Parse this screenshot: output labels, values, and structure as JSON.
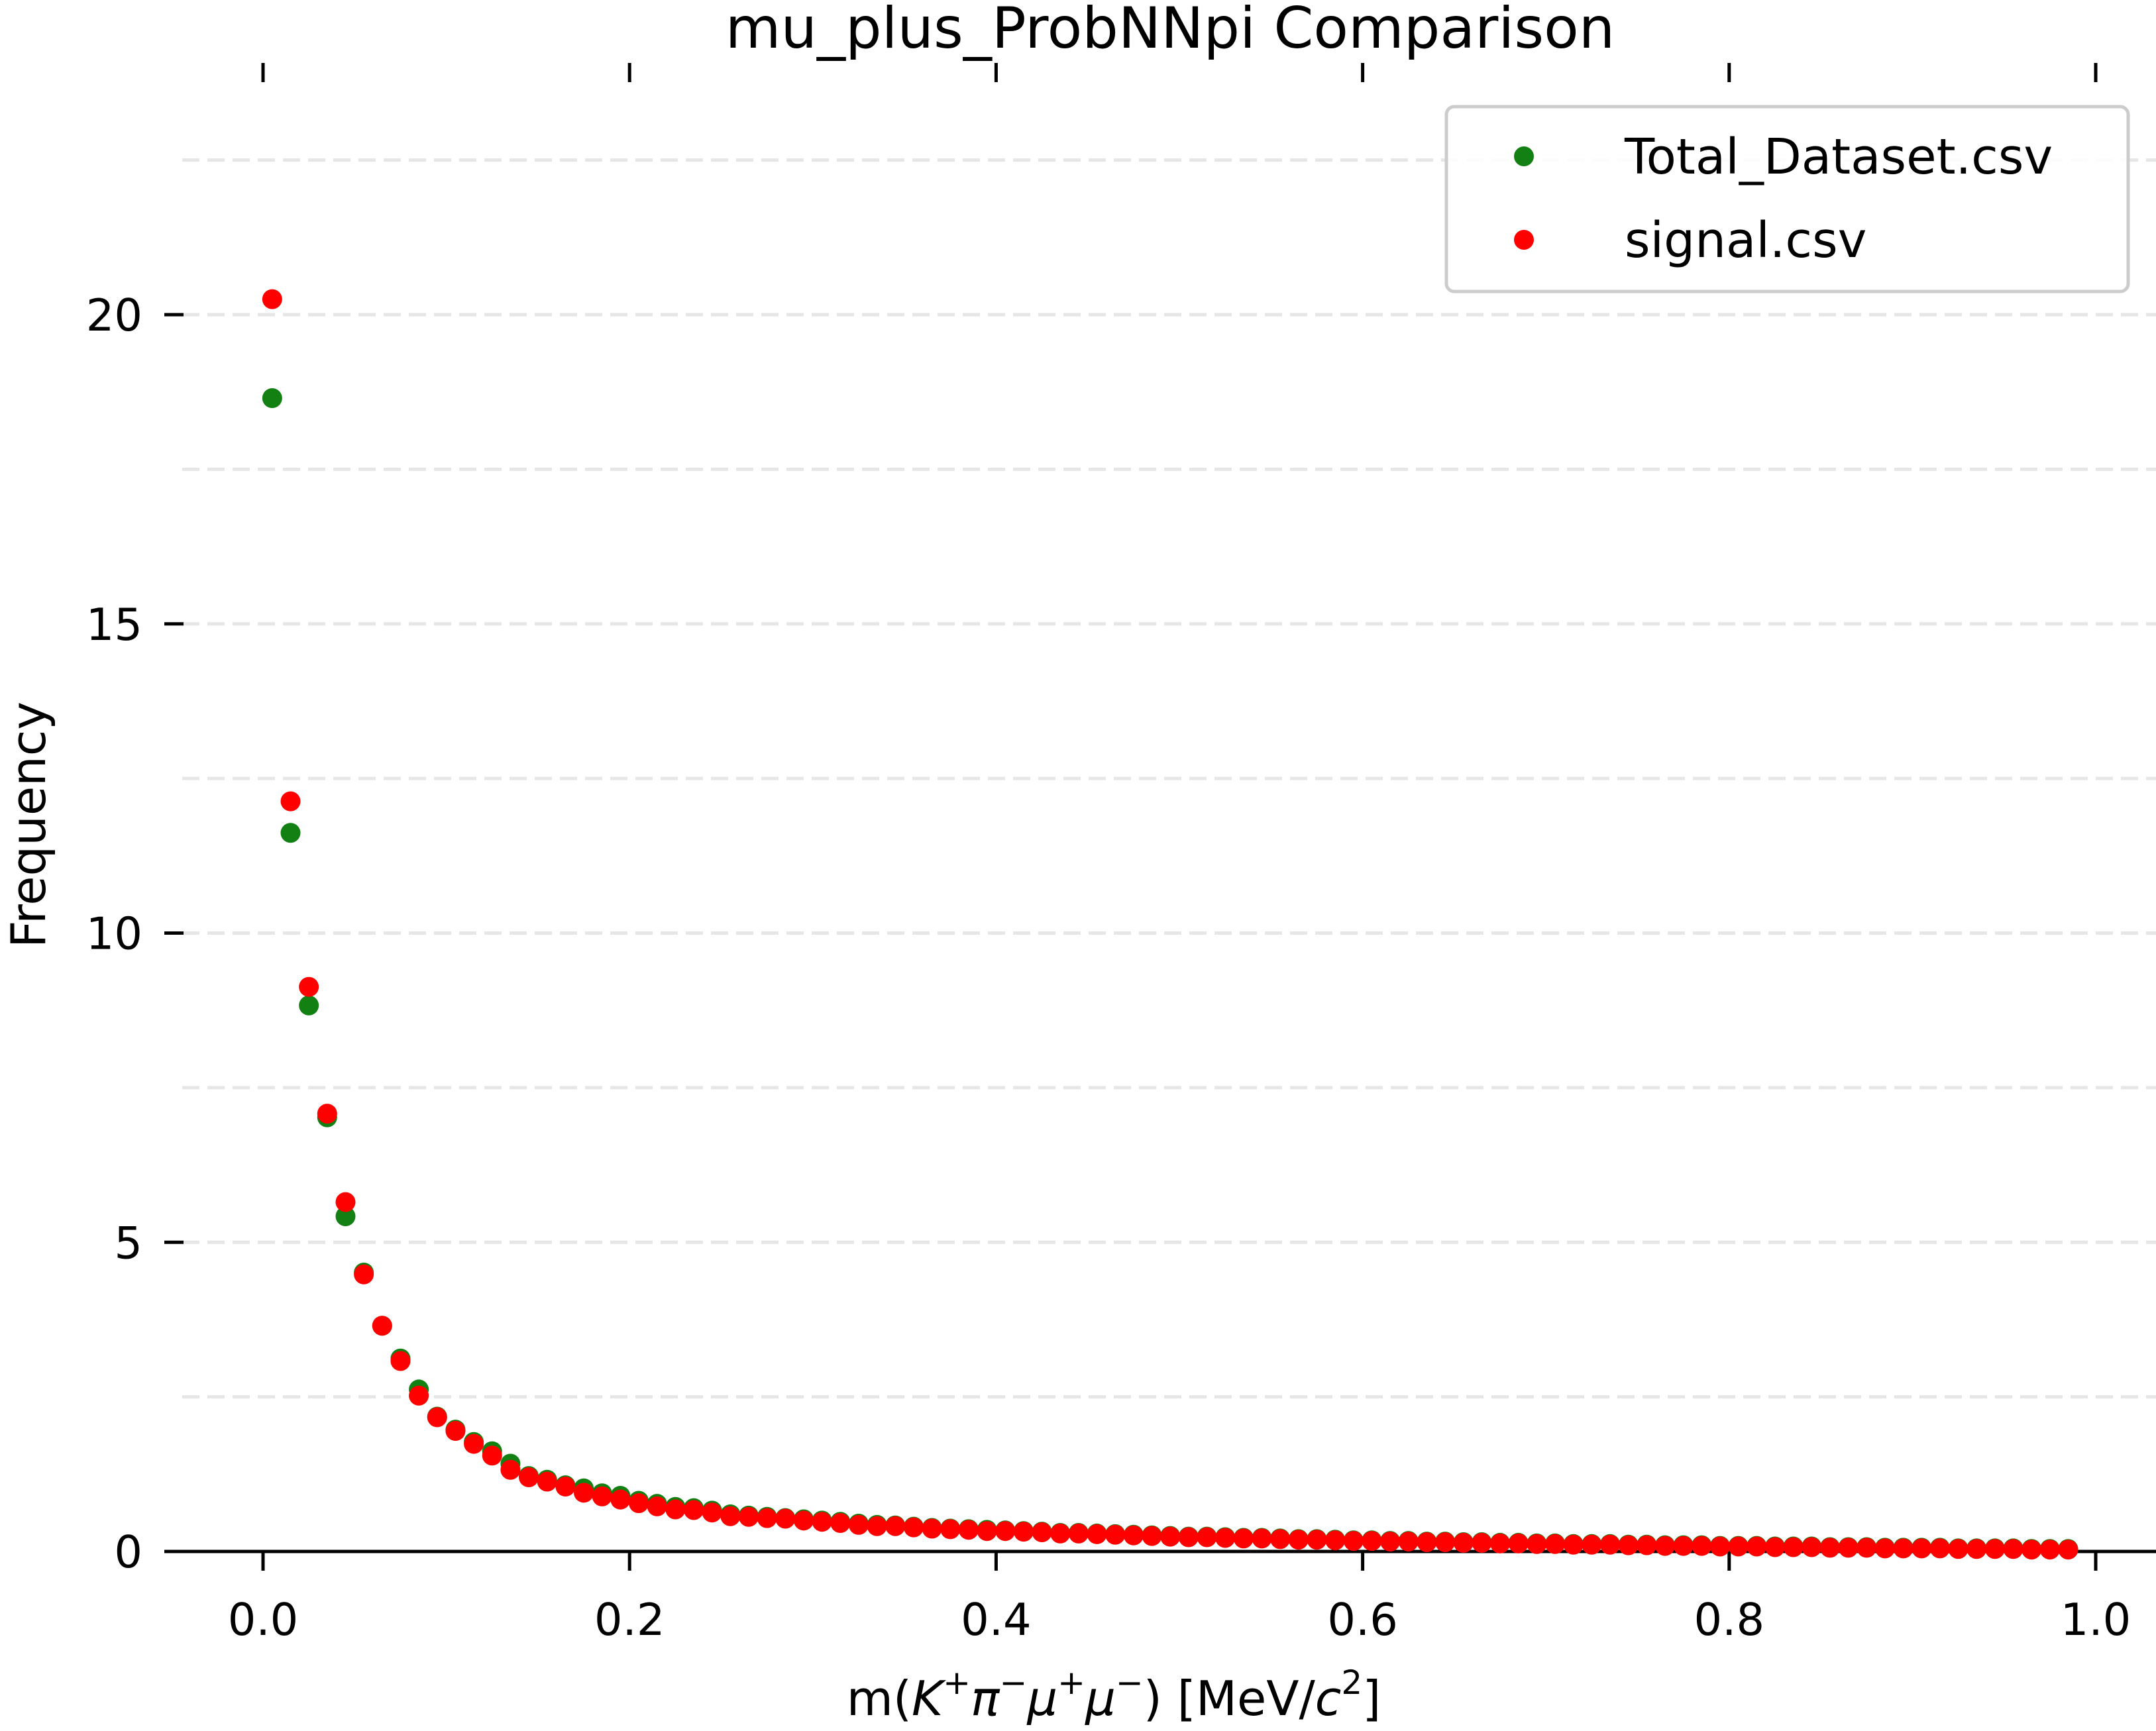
{
  "chart_data": {
    "type": "scatter",
    "title": "mu_plus_ProbNNpi Comparison",
    "xlabel_parts": {
      "prefix": "m(",
      "K": "K",
      "K_sup": "+",
      "pi": "π",
      "pi_sup": "−",
      "mu1": "μ",
      "mu1_sup": "+",
      "mu2": "μ",
      "mu2_sup": "−",
      "mid": ") [MeV/",
      "c": "c",
      "c_sup": "2",
      "suffix": "]"
    },
    "ylabel": "Frequency",
    "xlim": [
      -0.05,
      1.01
    ],
    "ylim": [
      0,
      24.0
    ],
    "xticks": [
      0.0,
      0.2,
      0.4,
      0.6,
      0.8,
      1.0
    ],
    "xtick_labels": [
      "0.0",
      "0.2",
      "0.4",
      "0.6",
      "0.8",
      "1.0"
    ],
    "yticks": [
      0,
      5,
      10,
      15,
      20
    ],
    "ytick_labels": [
      "0",
      "5",
      "10",
      "15",
      "20"
    ],
    "grid": "horizontal dashed",
    "gridlines_y": [
      2.5,
      5,
      7.5,
      10,
      12.5,
      15,
      17.5,
      20,
      22.5
    ],
    "legend_position": "top-right",
    "colors": {
      "Total_Dataset.csv": "#138013",
      "signal.csv": "#ff0000"
    },
    "series": [
      {
        "name": "Total_Dataset.csv",
        "x": [
          0.005,
          0.015,
          0.025,
          0.035,
          0.045,
          0.055,
          0.065,
          0.075,
          0.085,
          0.095,
          0.105,
          0.115,
          0.125,
          0.135,
          0.145,
          0.155,
          0.165,
          0.175,
          0.185,
          0.195,
          0.205,
          0.215,
          0.225,
          0.235,
          0.245,
          0.255,
          0.265,
          0.275,
          0.285,
          0.295,
          0.305,
          0.315,
          0.325,
          0.335,
          0.345,
          0.355,
          0.365,
          0.375,
          0.385,
          0.395,
          0.405,
          0.415,
          0.425,
          0.435,
          0.445,
          0.455,
          0.465,
          0.475,
          0.485,
          0.495,
          0.505,
          0.515,
          0.525,
          0.535,
          0.545,
          0.555,
          0.565,
          0.575,
          0.585,
          0.595,
          0.605,
          0.615,
          0.625,
          0.635,
          0.645,
          0.655,
          0.665,
          0.675,
          0.685,
          0.695,
          0.705,
          0.715,
          0.725,
          0.735,
          0.745,
          0.755,
          0.765,
          0.775,
          0.785,
          0.795,
          0.805,
          0.815,
          0.825,
          0.835,
          0.845,
          0.855,
          0.865,
          0.875,
          0.885,
          0.895,
          0.905,
          0.915,
          0.925,
          0.935,
          0.945,
          0.955,
          0.965,
          0.975,
          0.985
        ],
        "y": [
          18.65,
          11.62,
          8.83,
          7.02,
          5.42,
          4.51,
          3.65,
          3.12,
          2.62,
          2.18,
          1.97,
          1.77,
          1.62,
          1.42,
          1.22,
          1.16,
          1.07,
          1.02,
          0.94,
          0.9,
          0.82,
          0.77,
          0.72,
          0.7,
          0.66,
          0.6,
          0.58,
          0.56,
          0.54,
          0.52,
          0.5,
          0.48,
          0.45,
          0.43,
          0.42,
          0.4,
          0.38,
          0.37,
          0.36,
          0.35,
          0.34,
          0.33,
          0.32,
          0.3,
          0.3,
          0.29,
          0.28,
          0.27,
          0.26,
          0.25,
          0.24,
          0.24,
          0.23,
          0.22,
          0.22,
          0.21,
          0.2,
          0.2,
          0.19,
          0.18,
          0.18,
          0.17,
          0.17,
          0.16,
          0.16,
          0.15,
          0.15,
          0.14,
          0.14,
          0.13,
          0.13,
          0.12,
          0.12,
          0.12,
          0.11,
          0.11,
          0.1,
          0.1,
          0.1,
          0.09,
          0.09,
          0.09,
          0.08,
          0.08,
          0.08,
          0.07,
          0.07,
          0.07,
          0.06,
          0.06,
          0.06,
          0.06,
          0.05,
          0.05,
          0.05,
          0.05,
          0.04,
          0.04,
          0.04
        ]
      },
      {
        "name": "signal.csv",
        "x": [
          0.005,
          0.015,
          0.025,
          0.035,
          0.045,
          0.055,
          0.065,
          0.075,
          0.085,
          0.095,
          0.105,
          0.115,
          0.125,
          0.135,
          0.145,
          0.155,
          0.165,
          0.175,
          0.185,
          0.195,
          0.205,
          0.215,
          0.225,
          0.235,
          0.245,
          0.255,
          0.265,
          0.275,
          0.285,
          0.295,
          0.305,
          0.315,
          0.325,
          0.335,
          0.345,
          0.355,
          0.365,
          0.375,
          0.385,
          0.395,
          0.405,
          0.415,
          0.425,
          0.435,
          0.445,
          0.455,
          0.465,
          0.475,
          0.485,
          0.495,
          0.505,
          0.515,
          0.525,
          0.535,
          0.545,
          0.555,
          0.565,
          0.575,
          0.585,
          0.595,
          0.605,
          0.615,
          0.625,
          0.635,
          0.645,
          0.655,
          0.665,
          0.675,
          0.685,
          0.695,
          0.705,
          0.715,
          0.725,
          0.735,
          0.745,
          0.755,
          0.765,
          0.775,
          0.785,
          0.795,
          0.805,
          0.815,
          0.825,
          0.835,
          0.845,
          0.855,
          0.865,
          0.875,
          0.885,
          0.895,
          0.905,
          0.915,
          0.925,
          0.935,
          0.945,
          0.955,
          0.965,
          0.975,
          0.985
        ],
        "y": [
          20.25,
          12.13,
          9.13,
          7.08,
          5.65,
          4.48,
          3.65,
          3.08,
          2.52,
          2.17,
          1.95,
          1.74,
          1.55,
          1.32,
          1.2,
          1.13,
          1.05,
          0.95,
          0.89,
          0.84,
          0.78,
          0.73,
          0.68,
          0.67,
          0.63,
          0.57,
          0.56,
          0.54,
          0.53,
          0.5,
          0.48,
          0.46,
          0.43,
          0.41,
          0.41,
          0.39,
          0.37,
          0.36,
          0.35,
          0.33,
          0.33,
          0.32,
          0.31,
          0.29,
          0.29,
          0.28,
          0.27,
          0.26,
          0.25,
          0.24,
          0.23,
          0.23,
          0.22,
          0.21,
          0.21,
          0.2,
          0.19,
          0.19,
          0.18,
          0.17,
          0.17,
          0.16,
          0.16,
          0.15,
          0.15,
          0.14,
          0.14,
          0.13,
          0.13,
          0.12,
          0.12,
          0.11,
          0.11,
          0.11,
          0.1,
          0.1,
          0.09,
          0.09,
          0.09,
          0.08,
          0.08,
          0.08,
          0.07,
          0.07,
          0.07,
          0.06,
          0.06,
          0.06,
          0.05,
          0.05,
          0.05,
          0.05,
          0.04,
          0.04,
          0.04,
          0.04,
          0.03,
          0.03,
          0.03
        ]
      }
    ]
  }
}
